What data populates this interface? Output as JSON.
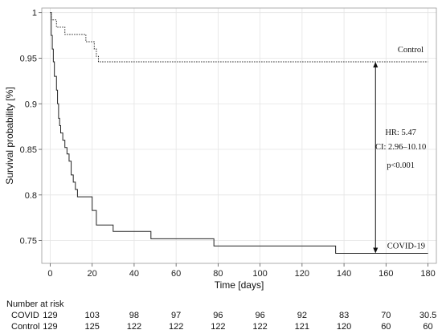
{
  "chart_data": {
    "type": "line",
    "step": true,
    "xlabel": "Time [days]",
    "ylabel": "Survival probability [%]",
    "xlim": [
      -4,
      184
    ],
    "ylim": [
      0.725,
      1.005
    ],
    "xticks": [
      0,
      20,
      40,
      60,
      80,
      100,
      120,
      140,
      160,
      180
    ],
    "xtick_labels": [
      "0",
      "20",
      "40",
      "60",
      "80",
      "100",
      "120",
      "140",
      "160",
      "180"
    ],
    "yticks": [
      0.75,
      0.8,
      0.85,
      0.9,
      0.95,
      1
    ],
    "ytick_labels": [
      "0.75",
      "0.8",
      "0.85",
      "0.9",
      "0.95",
      "1"
    ],
    "grid": true,
    "series": [
      {
        "name": "COVID-19",
        "style": "solid",
        "color": "#222222",
        "x": [
          0,
          0.5,
          1,
          1.5,
          2,
          3,
          3.5,
          4,
          4.5,
          5,
          6,
          7,
          8,
          9,
          10,
          11,
          12,
          13,
          14,
          15,
          17,
          20,
          22,
          30,
          48,
          78,
          136,
          180
        ],
        "y": [
          1,
          0.975,
          0.96,
          0.946,
          0.93,
          0.915,
          0.9,
          0.884,
          0.876,
          0.868,
          0.86,
          0.852,
          0.845,
          0.837,
          0.822,
          0.814,
          0.806,
          0.798,
          0.798,
          0.798,
          0.798,
          0.783,
          0.767,
          0.76,
          0.752,
          0.744,
          0.736,
          0.736
        ]
      },
      {
        "name": "Control",
        "style": "dotted",
        "color": "#222222",
        "x": [
          0,
          0.5,
          3,
          7,
          17,
          21,
          22,
          23,
          180
        ],
        "y": [
          1,
          0.992,
          0.984,
          0.976,
          0.968,
          0.96,
          0.952,
          0.946,
          0.946
        ]
      }
    ],
    "annotations": {
      "control_label": "Control",
      "covid_label": "COVID-19",
      "hr": "HR: 5.47",
      "ci": "CI: 2.96–10.10",
      "p": "p<0.001",
      "arrow_x": 155,
      "arrow_from": 0.946,
      "arrow_to": 0.736
    }
  },
  "risk_table": {
    "title": "Number at risk",
    "rows": [
      {
        "label": "COVID",
        "values": [
          "129",
          "103",
          "98",
          "97",
          "96",
          "96",
          "92",
          "83",
          "70",
          "30.5"
        ]
      },
      {
        "label": "Control",
        "values": [
          "129",
          "125",
          "122",
          "122",
          "122",
          "122",
          "121",
          "120",
          "60",
          "60"
        ]
      }
    ]
  }
}
